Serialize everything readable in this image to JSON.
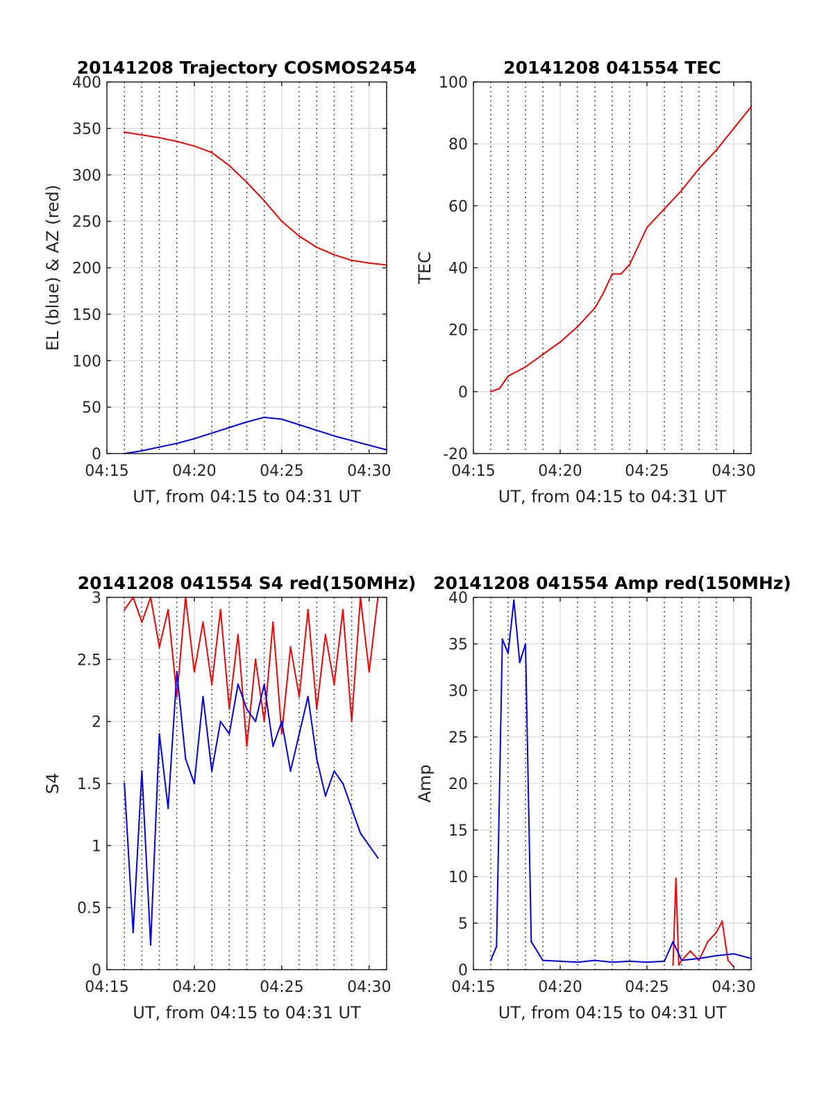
{
  "colors": {
    "red": "#ff0000",
    "blue": "#0000ff",
    "axis": "#262626",
    "grid": "#d9d9d9",
    "minor_grid": "#222222"
  },
  "chart_data": [
    {
      "id": "trajectory",
      "type": "line",
      "title": "20141208 Trajectory COSMOS2454",
      "xlabel": "UT, from 04:15 to 04:31 UT",
      "ylabel": "EL (blue) & AZ (red)",
      "xlim": [
        "04:15",
        "04:31"
      ],
      "ylim": [
        0,
        400
      ],
      "xticks": [
        "04:15",
        "04:20",
        "04:25",
        "04:30"
      ],
      "yticks": [
        0,
        50,
        100,
        150,
        200,
        250,
        300,
        350,
        400
      ],
      "grid": true,
      "minor_x_grid": true,
      "series": [
        {
          "color": "red",
          "x": [
            "04:16",
            "04:17",
            "04:18",
            "04:19",
            "04:20",
            "04:21",
            "04:22",
            "04:23",
            "04:24",
            "04:25",
            "04:26",
            "04:27",
            "04:28",
            "04:29",
            "04:30",
            "04:31"
          ],
          "values": [
            346,
            343,
            340,
            336,
            331,
            324,
            310,
            292,
            272,
            250,
            234,
            222,
            214,
            208,
            205,
            203
          ]
        },
        {
          "color": "blue",
          "x": [
            "04:16",
            "04:17",
            "04:18",
            "04:19",
            "04:20",
            "04:21",
            "04:22",
            "04:23",
            "04:24",
            "04:25",
            "04:26",
            "04:27",
            "04:28",
            "04:29",
            "04:30",
            "04:31"
          ],
          "values": [
            0,
            3,
            7,
            11,
            16,
            22,
            28,
            34,
            39,
            37,
            31,
            25,
            19,
            14,
            9,
            4
          ]
        }
      ]
    },
    {
      "id": "tec",
      "type": "line",
      "title": "20141208 041554 TEC",
      "xlabel": "UT, from 04:15 to 04:31 UT",
      "ylabel": "TEC",
      "xlim": [
        "04:15",
        "04:31"
      ],
      "ylim": [
        -20,
        100
      ],
      "xticks": [
        "04:15",
        "04:20",
        "04:25",
        "04:30"
      ],
      "yticks": [
        -20,
        0,
        20,
        40,
        60,
        80,
        100
      ],
      "grid": true,
      "minor_x_grid": true,
      "series": [
        {
          "color": "red",
          "x": [
            "04:16",
            "04:16:30",
            "04:17",
            "04:18",
            "04:19",
            "04:20",
            "04:21",
            "04:22",
            "04:22:30",
            "04:23",
            "04:23:30",
            "04:24",
            "04:25",
            "04:26",
            "04:27",
            "04:28",
            "04:29",
            "04:30",
            "04:31"
          ],
          "values": [
            0,
            1,
            5,
            8,
            12,
            16,
            21,
            27,
            32,
            38,
            38,
            41,
            53,
            59,
            65,
            72,
            78,
            85,
            92
          ]
        }
      ]
    },
    {
      "id": "s4",
      "type": "line",
      "title": "20141208 041554 S4 red(150MHz)",
      "xlabel": "UT, from 04:15 to 04:31 UT",
      "ylabel": "S4",
      "xlim": [
        "04:15",
        "04:31"
      ],
      "ylim": [
        0,
        3
      ],
      "xticks": [
        "04:15",
        "04:20",
        "04:25",
        "04:30"
      ],
      "yticks": [
        0,
        0.5,
        1,
        1.5,
        2,
        2.5,
        3
      ],
      "grid": true,
      "minor_x_grid": true,
      "series": [
        {
          "color": "red",
          "x": [
            "04:16",
            "04:16:30",
            "04:17",
            "04:17:30",
            "04:18",
            "04:18:30",
            "04:19",
            "04:19:30",
            "04:20",
            "04:20:30",
            "04:21",
            "04:21:30",
            "04:22",
            "04:22:30",
            "04:23",
            "04:23:30",
            "04:24",
            "04:24:30",
            "04:25",
            "04:25:30",
            "04:26",
            "04:26:30",
            "04:27",
            "04:27:30",
            "04:28",
            "04:28:30",
            "04:29",
            "04:29:30",
            "04:30",
            "04:30:30"
          ],
          "values": [
            2.9,
            3.0,
            2.8,
            3.0,
            2.6,
            2.9,
            2.2,
            3.0,
            2.4,
            2.8,
            2.3,
            2.9,
            2.1,
            2.7,
            1.8,
            2.5,
            2.0,
            2.8,
            1.9,
            2.6,
            2.2,
            2.9,
            2.1,
            2.7,
            2.3,
            2.9,
            2.0,
            3.0,
            2.4,
            3.0
          ]
        },
        {
          "color": "blue",
          "x": [
            "04:16",
            "04:16:30",
            "04:17",
            "04:17:30",
            "04:18",
            "04:18:30",
            "04:19",
            "04:19:30",
            "04:20",
            "04:20:30",
            "04:21",
            "04:21:30",
            "04:22",
            "04:22:30",
            "04:23",
            "04:23:30",
            "04:24",
            "04:24:30",
            "04:25",
            "04:25:30",
            "04:26",
            "04:26:30",
            "04:27",
            "04:27:30",
            "04:28",
            "04:28:30",
            "04:29",
            "04:29:30",
            "04:30",
            "04:30:30"
          ],
          "values": [
            1.5,
            0.3,
            1.6,
            0.2,
            1.9,
            1.3,
            2.4,
            1.7,
            1.5,
            2.2,
            1.6,
            2.0,
            1.9,
            2.3,
            2.1,
            2.0,
            2.3,
            1.8,
            2.0,
            1.6,
            1.9,
            2.2,
            1.7,
            1.4,
            1.6,
            1.5,
            1.3,
            1.1,
            1.0,
            0.9
          ]
        }
      ]
    },
    {
      "id": "amp",
      "type": "line",
      "title": "20141208 041554 Amp red(150MHz)",
      "xlabel": "UT, from 04:15 to 04:31 UT",
      "ylabel": "Amp",
      "xlim": [
        "04:15",
        "04:31"
      ],
      "ylim": [
        0,
        40
      ],
      "xticks": [
        "04:15",
        "04:20",
        "04:25",
        "04:30"
      ],
      "yticks": [
        0,
        5,
        10,
        15,
        20,
        25,
        30,
        35,
        40
      ],
      "grid": true,
      "minor_x_grid": true,
      "series": [
        {
          "color": "red",
          "x": [
            "04:26:30",
            "04:26:40",
            "04:26:50",
            "04:27",
            "04:27:30",
            "04:28",
            "04:28:30",
            "04:29",
            "04:29:20",
            "04:29:40",
            "04:30"
          ],
          "values": [
            0.5,
            9.8,
            0.5,
            1.0,
            2.0,
            1.0,
            3.0,
            4.0,
            5.2,
            1.0,
            0.3
          ]
        },
        {
          "color": "blue",
          "x": [
            "04:16",
            "04:16:20",
            "04:16:40",
            "04:17",
            "04:17:20",
            "04:17:40",
            "04:18",
            "04:18:20",
            "04:19",
            "04:20",
            "04:21",
            "04:22",
            "04:23",
            "04:24",
            "04:25",
            "04:26",
            "04:26:30",
            "04:27",
            "04:28",
            "04:29",
            "04:30",
            "04:31"
          ],
          "values": [
            1.0,
            2.5,
            35.5,
            34.0,
            39.7,
            33.0,
            35.0,
            3.0,
            1.0,
            0.9,
            0.8,
            1.0,
            0.8,
            0.9,
            0.8,
            0.9,
            3.0,
            1.0,
            1.2,
            1.5,
            1.7,
            1.2
          ]
        }
      ]
    }
  ]
}
